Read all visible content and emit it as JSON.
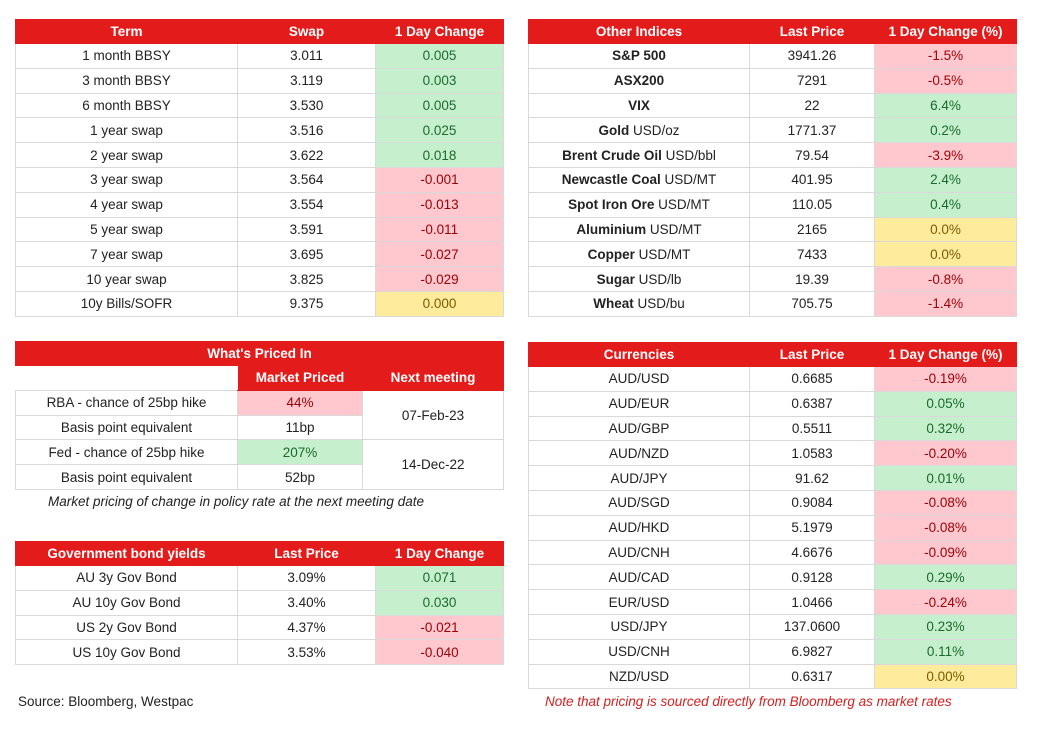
{
  "swap_table": {
    "headers": [
      "Term",
      "Swap",
      "1 Day Change"
    ],
    "rows": [
      [
        "1 month BBSY",
        "3.011",
        "0.005",
        "g"
      ],
      [
        "3 month BBSY",
        "3.119",
        "0.003",
        "g"
      ],
      [
        "6 month BBSY",
        "3.530",
        "0.005",
        "g"
      ],
      [
        "1 year swap",
        "3.516",
        "0.025",
        "g"
      ],
      [
        "2 year swap",
        "3.622",
        "0.018",
        "g"
      ],
      [
        "3 year swap",
        "3.564",
        "-0.001",
        "r"
      ],
      [
        "4 year swap",
        "3.554",
        "-0.013",
        "r"
      ],
      [
        "5 year swap",
        "3.591",
        "-0.011",
        "r"
      ],
      [
        "7 year swap",
        "3.695",
        "-0.027",
        "r"
      ],
      [
        "10 year swap",
        "3.825",
        "-0.029",
        "r"
      ],
      [
        "10y Bills/SOFR",
        "9.375",
        "0.000",
        "y"
      ]
    ]
  },
  "indices_table": {
    "headers": [
      "Other Indices",
      "Last Price",
      "1 Day Change (%)"
    ],
    "rows": [
      [
        "S&P 500",
        "",
        "3941.26",
        "-1.5%",
        "r"
      ],
      [
        "ASX200",
        "",
        "7291",
        "-0.5%",
        "r"
      ],
      [
        "VIX",
        "",
        "22",
        "6.4%",
        "g"
      ],
      [
        "Gold",
        "USD/oz",
        "1771.37",
        "0.2%",
        "g"
      ],
      [
        "Brent Crude Oil",
        "USD/bbl",
        "79.54",
        "-3.9%",
        "r"
      ],
      [
        "Newcastle Coal",
        "USD/MT",
        "401.95",
        "2.4%",
        "g"
      ],
      [
        "Spot Iron Ore",
        "USD/MT",
        "110.05",
        "0.4%",
        "g"
      ],
      [
        "Aluminium",
        "USD/MT",
        "2165",
        "0.0%",
        "y"
      ],
      [
        "Copper",
        "USD/MT",
        "7433",
        "0.0%",
        "y"
      ],
      [
        "Sugar",
        "USD/lb",
        "19.39",
        "-0.8%",
        "r"
      ],
      [
        "Wheat",
        "USD/bu",
        "705.75",
        "-1.4%",
        "r"
      ]
    ]
  },
  "priced": {
    "title": "What's Priced In",
    "col_market": "Market Priced",
    "col_next": "Next meeting",
    "rba_label": "RBA - chance of 25bp hike",
    "rba_value": "44%",
    "rba_bp_label": "Basis point equivalent",
    "rba_bp_value": "11bp",
    "rba_date": "07-Feb-23",
    "fed_label": "Fed - chance of 25bp hike",
    "fed_value": "207%",
    "fed_bp_label": "Basis point equivalent",
    "fed_bp_value": "52bp",
    "fed_date": "14-Dec-22",
    "note": "Market pricing of change in policy rate at the next meeting date"
  },
  "bonds_table": {
    "headers": [
      "Government bond yields",
      "Last Price",
      "1 Day Change"
    ],
    "rows": [
      [
        "AU 3y Gov Bond",
        "3.09%",
        "0.071",
        "g"
      ],
      [
        "AU 10y Gov Bond",
        "3.40%",
        "0.030",
        "g"
      ],
      [
        "US 2y Gov Bond",
        "4.37%",
        "-0.021",
        "r"
      ],
      [
        "US 10y Gov Bond",
        "3.53%",
        "-0.040",
        "r"
      ]
    ]
  },
  "fx_table": {
    "headers": [
      "Currencies",
      "Last Price",
      "1 Day Change (%)"
    ],
    "rows": [
      [
        "AUD/USD",
        "0.6685",
        "-0.19%",
        "r"
      ],
      [
        "AUD/EUR",
        "0.6387",
        "0.05%",
        "g"
      ],
      [
        "AUD/GBP",
        "0.5511",
        "0.32%",
        "g"
      ],
      [
        "AUD/NZD",
        "1.0583",
        "-0.20%",
        "r"
      ],
      [
        "AUD/JPY",
        "91.62",
        "0.01%",
        "g"
      ],
      [
        "AUD/SGD",
        "0.9084",
        "-0.08%",
        "r"
      ],
      [
        "AUD/HKD",
        "5.1979",
        "-0.08%",
        "r"
      ],
      [
        "AUD/CNH",
        "4.6676",
        "-0.09%",
        "r"
      ],
      [
        "AUD/CAD",
        "0.9128",
        "0.29%",
        "g"
      ],
      [
        "EUR/USD",
        "1.0466",
        "-0.24%",
        "r"
      ],
      [
        "USD/JPY",
        "137.0600",
        "0.23%",
        "g"
      ],
      [
        "USD/CNH",
        "6.9827",
        "0.11%",
        "g"
      ],
      [
        "NZD/USD",
        "0.6317",
        "0.00%",
        "y"
      ]
    ]
  },
  "source": "Source: Bloomberg, Westpac",
  "bloomberg_note": "Note that pricing is sourced directly from Bloomberg as market rates",
  "colors": {
    "header_red": "#e41b1b",
    "positive_green": "#c6efce",
    "negative_red": "#ffc7ce",
    "unchanged_yellow": "#ffeb9c",
    "note_red": "#d42020"
  }
}
